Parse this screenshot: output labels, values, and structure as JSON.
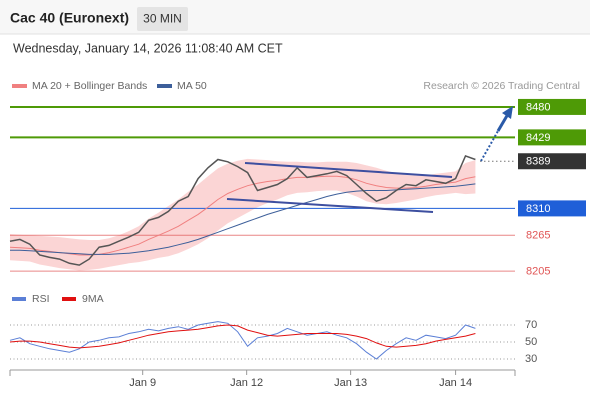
{
  "header": {
    "title": "Cac 40 (Euronext)",
    "timeframe": "30 MIN",
    "date": "Wednesday, January 14, 2026 11:08:40 AM CET"
  },
  "chart_data": [
    {
      "type": "line",
      "source": "Research © 2026 Trading Central",
      "x": [
        0,
        1,
        2,
        3,
        4,
        5,
        6,
        7,
        8,
        9,
        10,
        11,
        12,
        13,
        14,
        15,
        16,
        17,
        18,
        19,
        20,
        21,
        22,
        23,
        24,
        25,
        26,
        27,
        28,
        29,
        30,
        31,
        32,
        33,
        34,
        35,
        36,
        37,
        38,
        39,
        40,
        41,
        42,
        43,
        44,
        45,
        46,
        47
      ],
      "values": [
        8255,
        8258,
        8250,
        8232,
        8228,
        8225,
        8218,
        8215,
        8225,
        8245,
        8248,
        8255,
        8262,
        8270,
        8290,
        8295,
        8305,
        8322,
        8330,
        8360,
        8378,
        8392,
        8388,
        8380,
        8370,
        8340,
        8345,
        8350,
        8360,
        8378,
        8362,
        8365,
        8368,
        8372,
        8365,
        8350,
        8335,
        8322,
        8328,
        8340,
        8350,
        8348,
        8358,
        8355,
        8352,
        8360,
        8398,
        8392
      ],
      "color": "#555555",
      "series": [
        {
          "name": "MA 20 + Bollinger Bands",
          "color": "#f08080",
          "band_color": "#fbd5d5",
          "values": [
            8245,
            8244,
            8243,
            8240,
            8238,
            8236,
            8234,
            8232,
            8232,
            8233,
            8236,
            8240,
            8245,
            8250,
            8258,
            8265,
            8272,
            8280,
            8290,
            8300,
            8312,
            8325,
            8335,
            8342,
            8348,
            8352,
            8355,
            8357,
            8360,
            8362,
            8362,
            8363,
            8364,
            8364,
            8362,
            8358,
            8352,
            8348,
            8345,
            8344,
            8344,
            8345,
            8347,
            8350,
            8352,
            8354,
            8360,
            8363
          ],
          "upper": [
            8267,
            8266,
            8265,
            8264,
            8263,
            8262,
            8260,
            8258,
            8257,
            8257,
            8260,
            8265,
            8272,
            8280,
            8293,
            8303,
            8314,
            8325,
            8338,
            8350,
            8364,
            8377,
            8385,
            8390,
            8393,
            8392,
            8391,
            8389,
            8388,
            8388,
            8387,
            8387,
            8388,
            8388,
            8388,
            8386,
            8382,
            8378,
            8373,
            8369,
            8366,
            8365,
            8365,
            8368,
            8370,
            8372,
            8386,
            8391
          ],
          "lower": [
            8223,
            8222,
            8221,
            8216,
            8213,
            8210,
            8208,
            8206,
            8207,
            8209,
            8212,
            8215,
            8218,
            8220,
            8223,
            8227,
            8230,
            8235,
            8242,
            8250,
            8260,
            8273,
            8285,
            8294,
            8303,
            8312,
            8319,
            8325,
            8332,
            8336,
            8337,
            8339,
            8340,
            8340,
            8336,
            8330,
            8322,
            8318,
            8317,
            8319,
            8322,
            8325,
            8329,
            8332,
            8334,
            8336,
            8334,
            8335
          ]
        },
        {
          "name": "MA 50",
          "color": "#3d5f9a",
          "values": [
            8240,
            8240,
            8239,
            8238,
            8237,
            8236,
            8235,
            8234,
            8233,
            8233,
            8233,
            8234,
            8235,
            8237,
            8239,
            8242,
            8245,
            8249,
            8253,
            8258,
            8264,
            8270,
            8276,
            8282,
            8288,
            8294,
            8300,
            8305,
            8310,
            8315,
            8320,
            8325,
            8330,
            8334,
            8337,
            8339,
            8340,
            8340,
            8340,
            8341,
            8342,
            8343,
            8344,
            8345,
            8346,
            8347,
            8349,
            8351
          ]
        }
      ],
      "levels": [
        {
          "value": 8480,
          "color": "#4e9a06",
          "style": "box",
          "line": "full"
        },
        {
          "value": 8429,
          "color": "#4e9a06",
          "style": "box",
          "line": "full"
        },
        {
          "value": 8389,
          "color": "#333333",
          "style": "box",
          "line": "dotted"
        },
        {
          "value": 8310,
          "color": "#1f5fd8",
          "style": "box",
          "line": "full"
        },
        {
          "value": 8265,
          "color": "#e05555",
          "style": "text",
          "line": "full"
        },
        {
          "value": 8205,
          "color": "#e05555",
          "style": "text",
          "line": "full"
        }
      ],
      "xlim": [
        0,
        51
      ],
      "ylim": [
        8180,
        8500
      ]
    },
    {
      "type": "line",
      "x": [
        0,
        1,
        2,
        3,
        4,
        5,
        6,
        7,
        8,
        9,
        10,
        11,
        12,
        13,
        14,
        15,
        16,
        17,
        18,
        19,
        20,
        21,
        22,
        23,
        24,
        25,
        26,
        27,
        28,
        29,
        30,
        31,
        32,
        33,
        34,
        35,
        36,
        37,
        38,
        39,
        40,
        41,
        42,
        43,
        44,
        45,
        46,
        47
      ],
      "series": [
        {
          "name": "RSI",
          "color": "#5b7fd6",
          "values": [
            52,
            55,
            48,
            45,
            42,
            40,
            38,
            42,
            50,
            52,
            55,
            56,
            60,
            62,
            65,
            63,
            66,
            68,
            65,
            70,
            72,
            74,
            72,
            62,
            45,
            55,
            57,
            60,
            66,
            62,
            58,
            60,
            62,
            58,
            55,
            48,
            38,
            30,
            40,
            48,
            55,
            52,
            58,
            56,
            54,
            58,
            70,
            66
          ]
        },
        {
          "name": "9MA",
          "color": "#e01010",
          "values": [
            50,
            51,
            51,
            50,
            48,
            46,
            44,
            43,
            44,
            45,
            47,
            49,
            52,
            55,
            58,
            60,
            62,
            63,
            64,
            65,
            67,
            69,
            70,
            69,
            64,
            61,
            58,
            57,
            58,
            59,
            60,
            60,
            60,
            60,
            59,
            57,
            54,
            49,
            45,
            44,
            45,
            46,
            48,
            51,
            53,
            55,
            57,
            60
          ]
        }
      ],
      "xlim": [
        0,
        51
      ],
      "ylim": [
        20,
        80
      ],
      "yticks": [
        70,
        50,
        30
      ],
      "xticks": [
        {
          "value": 13.4,
          "label": "Jan 9"
        },
        {
          "value": 23.9,
          "label": "Jan 12"
        },
        {
          "value": 34.4,
          "label": "Jan 13"
        },
        {
          "value": 45,
          "label": "Jan 14"
        }
      ]
    }
  ]
}
